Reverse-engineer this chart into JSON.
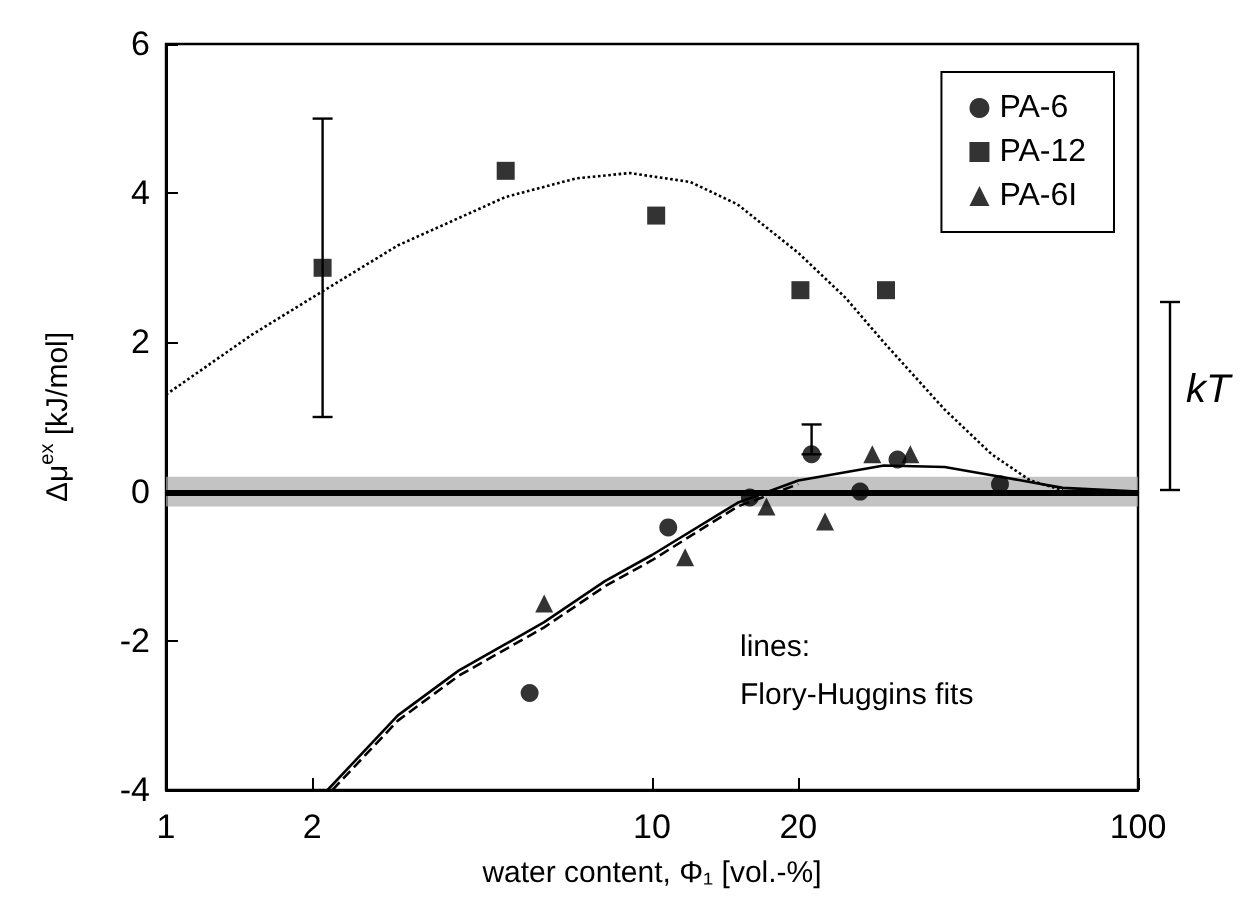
{
  "chart_data": {
    "type": "scatter",
    "xlabel": "water content, Φ₁ [vol.-%]",
    "ylabel": "Δμ$^{ex}$ [kJ/mol]",
    "log": "x",
    "xlim": [
      1,
      100
    ],
    "xticks": [
      1,
      2,
      10,
      20,
      100
    ],
    "ylim": [
      -4,
      6
    ],
    "yticks": [
      -4,
      -2,
      0,
      2,
      4,
      6
    ],
    "grid": false,
    "legend": "top right",
    "series": [
      {
        "name": "PA-6",
        "marker": "circle",
        "color": "#000000",
        "x": [
          5.6,
          10.8,
          15.9,
          21.3,
          26.8,
          32,
          52
        ],
        "values": [
          -2.7,
          -0.48,
          -0.08,
          0.5,
          0.0,
          0.43,
          0.1
        ],
        "errors": [
          null,
          null,
          null,
          [
            0.5,
            0.9
          ],
          null,
          null,
          null
        ]
      },
      {
        "name": "PA-12",
        "marker": "square",
        "color": "#000000",
        "x": [
          2.1,
          5.0,
          10.2,
          20.2,
          30.3
        ],
        "values": [
          3.0,
          4.3,
          3.7,
          2.7,
          2.7
        ],
        "errors": [
          [
            1,
            5
          ],
          null,
          null,
          null,
          null
        ]
      },
      {
        "name": "PA-6I",
        "marker": "triangle",
        "color": "#000000",
        "x": [
          6.0,
          11.7,
          17.2,
          22.7,
          28.4,
          34
        ],
        "values": [
          -1.5,
          -0.88,
          -0.2,
          -0.4,
          0.5,
          0.5
        ]
      },
      {
        "type": "line",
        "line_style": "dotted",
        "color": "#000000",
        "x": [
          1,
          1.5,
          2,
          3,
          5,
          7,
          9,
          12,
          15,
          20,
          25,
          30,
          40,
          50,
          60,
          70
        ],
        "values": [
          1.3,
          2.1,
          2.6,
          3.3,
          3.95,
          4.2,
          4.27,
          4.15,
          3.85,
          3.2,
          2.6,
          2.0,
          1.1,
          0.5,
          0.15,
          0.02
        ]
      },
      {
        "type": "line",
        "line_style": "solid",
        "color": "#000000",
        "x": [
          2.15,
          3,
          4,
          6,
          8,
          10,
          15,
          20,
          30,
          40,
          50,
          70,
          100
        ],
        "values": [
          -4,
          -3.0,
          -2.4,
          -1.75,
          -1.2,
          -0.85,
          -0.15,
          0.15,
          0.35,
          0.33,
          0.22,
          0.05,
          0
        ]
      },
      {
        "type": "line",
        "line_style": "dashed",
        "color": "#000000",
        "x": [
          2.2,
          3,
          4,
          6,
          8,
          10,
          15,
          20
        ],
        "values": [
          -4,
          -3.07,
          -2.47,
          -1.82,
          -1.27,
          -0.92,
          -0.2,
          0.1
        ]
      }
    ],
    "ref_lines": [
      {
        "axis": "y",
        "value": 0,
        "color": "#000000"
      }
    ],
    "bands": [
      {
        "axis": "y",
        "from": -0.2,
        "to": 0.2,
        "color": "#aaaaaa"
      }
    ],
    "annotations": [
      "lines:",
      "Flory-Huggins fits",
      "kT"
    ]
  }
}
